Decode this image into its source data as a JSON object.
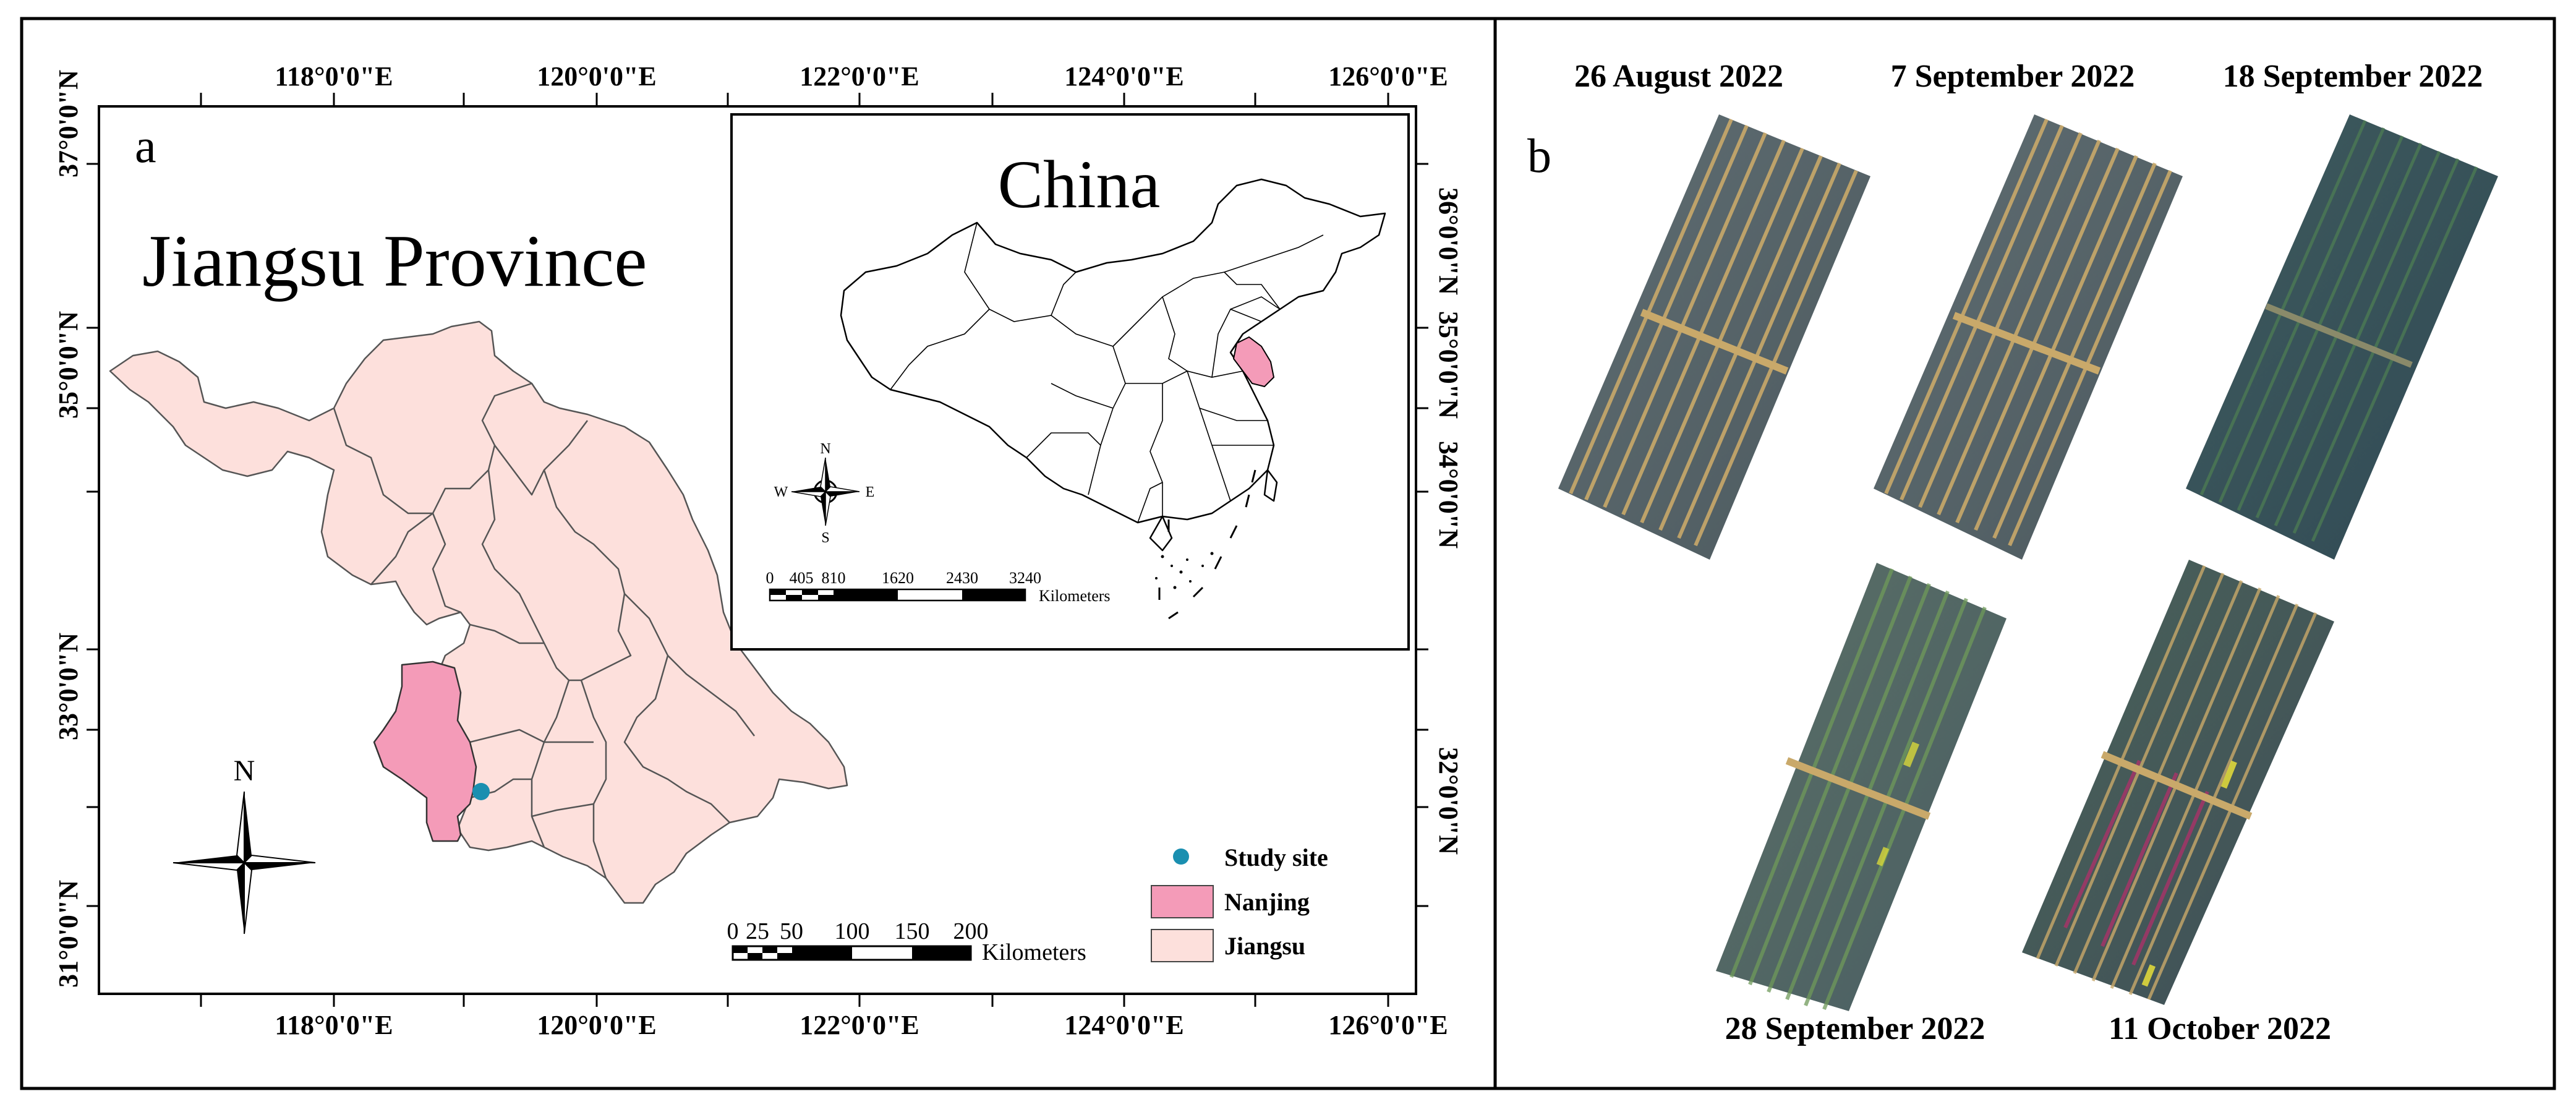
{
  "panel_a": {
    "label": "a",
    "title": "Jiangsu Province",
    "top_lon_ticks": [
      "118°0'0\"E",
      "120°0'0\"E",
      "122°0'0\"E",
      "124°0'0\"E",
      "126°0'0\"E"
    ],
    "bottom_lon_ticks": [
      "118°0'0\"E",
      "120°0'0\"E",
      "122°0'0\"E",
      "124°0'0\"E",
      "126°0'0\"E"
    ],
    "left_lat_ticks": [
      "37°0'0\"N",
      "35°0'0\"N",
      "33°0'0\"N",
      "31°0'0\"N"
    ],
    "right_lat_ticks": [
      "36°0'0\"N",
      "35°0'0\"N",
      "34°0'0\"N",
      "32°0'0\"N"
    ],
    "north_label": "N",
    "scale_numbers": [
      "0",
      "25",
      "50",
      "100",
      "150",
      "200"
    ],
    "scale_unit": "Kilometers",
    "legend": [
      {
        "label": "Study site",
        "color": "#1a8fb0"
      },
      {
        "label": "Nanjing",
        "color": "#f49bb8"
      },
      {
        "label": "Jiangsu",
        "color": "#fde0dc"
      }
    ],
    "inset": {
      "title": "China",
      "compass": {
        "n": "N",
        "s": "S",
        "e": "E",
        "w": "W"
      },
      "scale_numbers": [
        "0",
        "405",
        "810",
        "1620",
        "2430",
        "3240"
      ],
      "scale_unit": "Kilometers"
    }
  },
  "panel_b": {
    "label": "b",
    "dates": [
      "26 August 2022",
      "7 September 2022",
      "18 September 2022",
      "28 September 2022",
      "11 October 2022"
    ]
  },
  "colors": {
    "jiangsu_fill": "#fde0dc",
    "nanjing_fill": "#f49bb8",
    "study_site": "#1a8fb0",
    "border": "#000000"
  }
}
